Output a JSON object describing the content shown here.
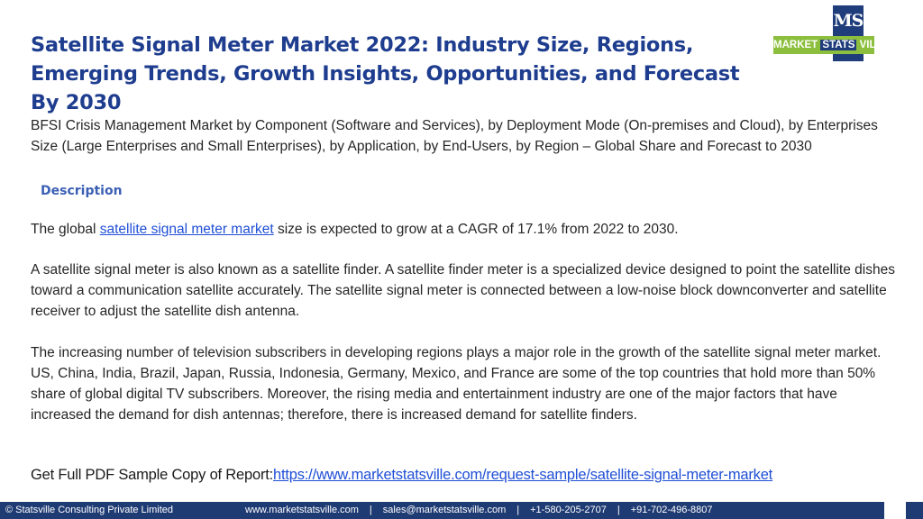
{
  "title": "Satellite Signal Meter Market 2022: Industry Size, Regions, Emerging Trends, Growth Insights, Opportunities, and Forecast By 2030",
  "logo": {
    "mark": "MS",
    "word1": "MARKET",
    "word2": "STATS",
    "word3": "VILLE"
  },
  "intro": "BFSI Crisis Management Market by Component (Software and Services), by Deployment Mode (On-premises and Cloud), by Enterprises Size (Large Enterprises and Small Enterprises), by Application, by End-Users, by Region – Global Share and Forecast to 2030",
  "description_heading": "Description",
  "paragraph1": {
    "prefix": "The ",
    "global": "global",
    "link_text": "satellite signal meter market",
    "middle": " size is expected to grow at a ",
    "cagr": "CAGR of 17.1%",
    "suffix": " from 2022 to 2030."
  },
  "paragraph2": "A satellite signal meter is also known as a satellite finder. A satellite finder meter is a specialized device designed to point the satellite dishes toward a communication satellite accurately. The satellite signal meter is connected between a low-noise block downconverter and satellite receiver to adjust the satellite dish antenna.",
  "paragraph3": "The increasing number of television subscribers in developing regions plays a major role in the growth of the satellite signal meter market. US, China, India, Brazil, Japan, Russia, Indonesia, Germany, Mexico, and France are some of the top countries that hold more than 50% share of global digital TV subscribers. Moreover, the rising media and entertainment industry are one of the major factors that have increased the demand for dish antennas; therefore, there is increased demand for satellite finders.",
  "cta": {
    "label": "Get Full PDF Sample Copy of Report:",
    "link": "https://www.marketstatsville.com/request-sample/satellite-signal-meter-market"
  },
  "footer": {
    "copyright": "© Statsville Consulting Private Limited",
    "website": "www.marketstatsville.com",
    "email": "sales@marketstatsville.com",
    "phone1": "+1-580-205-2707",
    "phone2": "+91-702-496-8807",
    "separator": "|"
  },
  "colors": {
    "title": "#1e3d8f",
    "link": "#1f4fd6",
    "footer_bg": "#1f3b73",
    "logo_green": "#8dbf3e",
    "logo_navy": "#1f3d7a"
  }
}
